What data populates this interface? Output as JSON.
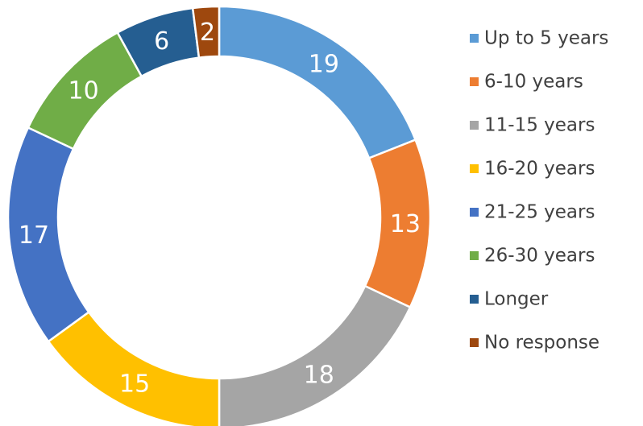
{
  "chart_data": {
    "type": "donut",
    "categories": [
      "Up to 5 years",
      "6-10 years",
      "11-15 years",
      "16-20 years",
      "21-25 years",
      "26-30 years",
      "Longer",
      "No response"
    ],
    "values": [
      19,
      13,
      18,
      15,
      17,
      10,
      6,
      2
    ],
    "colors": [
      "#5b9bd5",
      "#ed7d31",
      "#a5a5a5",
      "#ffc000",
      "#4472c4",
      "#70ad47",
      "#255e91",
      "#9e480e"
    ],
    "legend": "right"
  }
}
